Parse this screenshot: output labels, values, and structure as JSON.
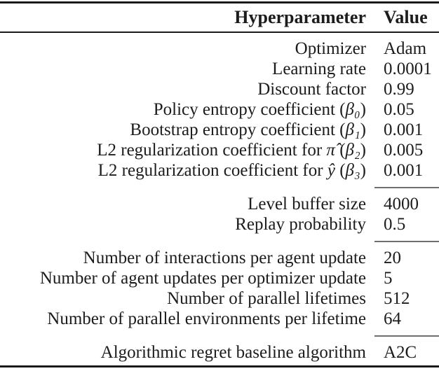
{
  "style": {
    "background": "#ffffff",
    "text_color": "#1c1c1c",
    "rule_color": "#1a1a1a",
    "cmidrule_color": "#6e6e6e"
  },
  "table": {
    "header": {
      "hyperparameter": "Hyperparameter",
      "value": "Value"
    },
    "sections": [
      {
        "rows": [
          {
            "param": "Optimizer",
            "value": "Adam"
          },
          {
            "param": "Learning rate",
            "value": "0.0001"
          },
          {
            "param": "Discount factor",
            "value": "0.99"
          },
          {
            "param": "Policy entropy coefficient (β₀)",
            "value": "0.05"
          },
          {
            "param": "Bootstrap entropy coefficient (β₁)",
            "value": "0.001"
          },
          {
            "param": "L2 regularization coefficient for π̂ (β₂)",
            "value": "0.005"
          },
          {
            "param": "L2 regularization coefficient for ŷ (β₃)",
            "value": "0.001"
          }
        ]
      },
      {
        "rows": [
          {
            "param": "Level buffer size",
            "value": "4000"
          },
          {
            "param": "Replay probability",
            "value": "0.5"
          }
        ]
      },
      {
        "rows": [
          {
            "param": "Number of interactions per agent update",
            "value": "20"
          },
          {
            "param": "Number of agent updates per optimizer update",
            "value": "5"
          },
          {
            "param": "Number of parallel lifetimes",
            "value": "512"
          },
          {
            "param": "Number of parallel environments per lifetime",
            "value": "64"
          }
        ]
      },
      {
        "rows": [
          {
            "param": "Algorithmic regret baseline algorithm",
            "value": "A2C"
          }
        ]
      }
    ]
  }
}
